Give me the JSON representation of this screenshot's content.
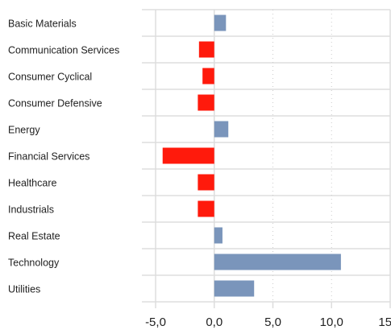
{
  "chart_data": {
    "type": "bar",
    "orientation": "horizontal",
    "categories": [
      "Basic Materials",
      "Communication Services",
      "Consumer Cyclical",
      "Consumer Defensive",
      "Energy",
      "Financial Services",
      "Healthcare",
      "Industrials",
      "Real Estate",
      "Technology",
      "Utilities"
    ],
    "values": [
      1.0,
      -1.3,
      -1.0,
      -1.4,
      1.2,
      -4.4,
      -1.4,
      -1.4,
      0.7,
      10.8,
      3.4
    ],
    "xlim": [
      -5.0,
      15.0
    ],
    "xticks": [
      -5,
      0,
      5,
      10,
      15
    ],
    "xtick_labels": [
      "-5,0",
      "0,0",
      "5,0",
      "10,0",
      "15,0"
    ],
    "title": "",
    "xlabel": "",
    "ylabel": "",
    "grid": true,
    "legend": "none",
    "colors": {
      "positive": "#7a95bb",
      "negative": "#ff1a0c",
      "grid_solid": "#dddddd",
      "grid_dotted": "#cccccc",
      "text": "#222222"
    }
  }
}
